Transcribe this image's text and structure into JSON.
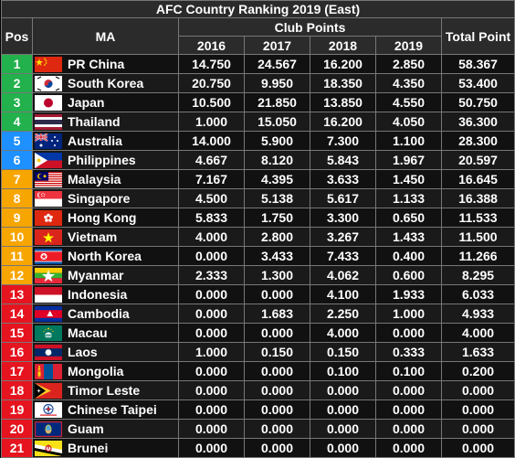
{
  "title": "AFC Country Ranking 2019 (East)",
  "headers": {
    "pos": "Pos",
    "ma": "MA",
    "club_points": "Club Points",
    "years": [
      "2016",
      "2017",
      "2018",
      "2019"
    ],
    "total": "Total Point"
  },
  "colors": {
    "green": "#22b14c",
    "blue": "#1e90ff",
    "amber": "#f7a500",
    "red": "#e5141f"
  },
  "rows": [
    {
      "pos": "1",
      "ma": "PR China",
      "flag": "china-flag-icon",
      "y2016": "14.750",
      "y2017": "24.567",
      "y2018": "16.200",
      "y2019": "2.850",
      "total": "58.367"
    },
    {
      "pos": "2",
      "ma": "South Korea",
      "flag": "south-korea-flag-icon",
      "y2016": "20.750",
      "y2017": "9.950",
      "y2018": "18.350",
      "y2019": "4.350",
      "total": "53.400"
    },
    {
      "pos": "3",
      "ma": "Japan",
      "flag": "japan-flag-icon",
      "y2016": "10.500",
      "y2017": "21.850",
      "y2018": "13.850",
      "y2019": "4.550",
      "total": "50.750"
    },
    {
      "pos": "4",
      "ma": "Thailand",
      "flag": "thailand-flag-icon",
      "y2016": "1.000",
      "y2017": "15.050",
      "y2018": "16.200",
      "y2019": "4.050",
      "total": "36.300"
    },
    {
      "pos": "5",
      "ma": "Australia",
      "flag": "australia-flag-icon",
      "y2016": "14.000",
      "y2017": "5.900",
      "y2018": "7.300",
      "y2019": "1.100",
      "total": "28.300"
    },
    {
      "pos": "6",
      "ma": "Philippines",
      "flag": "philippines-flag-icon",
      "y2016": "4.667",
      "y2017": "8.120",
      "y2018": "5.843",
      "y2019": "1.967",
      "total": "20.597"
    },
    {
      "pos": "7",
      "ma": "Malaysia",
      "flag": "malaysia-flag-icon",
      "y2016": "7.167",
      "y2017": "4.395",
      "y2018": "3.633",
      "y2019": "1.450",
      "total": "16.645"
    },
    {
      "pos": "8",
      "ma": "Singapore",
      "flag": "singapore-flag-icon",
      "y2016": "4.500",
      "y2017": "5.138",
      "y2018": "5.617",
      "y2019": "1.133",
      "total": "16.388"
    },
    {
      "pos": "9",
      "ma": "Hong Kong",
      "flag": "hong-kong-flag-icon",
      "y2016": "5.833",
      "y2017": "1.750",
      "y2018": "3.300",
      "y2019": "0.650",
      "total": "11.533"
    },
    {
      "pos": "10",
      "ma": "Vietnam",
      "flag": "vietnam-flag-icon",
      "y2016": "4.000",
      "y2017": "2.800",
      "y2018": "3.267",
      "y2019": "1.433",
      "total": "11.500"
    },
    {
      "pos": "11",
      "ma": "North Korea",
      "flag": "north-korea-flag-icon",
      "y2016": "0.000",
      "y2017": "3.433",
      "y2018": "7.433",
      "y2019": "0.400",
      "total": "11.266"
    },
    {
      "pos": "12",
      "ma": "Myanmar",
      "flag": "myanmar-flag-icon",
      "y2016": "2.333",
      "y2017": "1.300",
      "y2018": "4.062",
      "y2019": "0.600",
      "total": "8.295"
    },
    {
      "pos": "13",
      "ma": "Indonesia",
      "flag": "indonesia-flag-icon",
      "y2016": "0.000",
      "y2017": "0.000",
      "y2018": "4.100",
      "y2019": "1.933",
      "total": "6.033"
    },
    {
      "pos": "14",
      "ma": "Cambodia",
      "flag": "cambodia-flag-icon",
      "y2016": "0.000",
      "y2017": "1.683",
      "y2018": "2.250",
      "y2019": "1.000",
      "total": "4.933"
    },
    {
      "pos": "15",
      "ma": "Macau",
      "flag": "macau-flag-icon",
      "y2016": "0.000",
      "y2017": "0.000",
      "y2018": "4.000",
      "y2019": "0.000",
      "total": "4.000"
    },
    {
      "pos": "16",
      "ma": "Laos",
      "flag": "laos-flag-icon",
      "y2016": "1.000",
      "y2017": "0.150",
      "y2018": "0.150",
      "y2019": "0.333",
      "total": "1.633"
    },
    {
      "pos": "17",
      "ma": "Mongolia",
      "flag": "mongolia-flag-icon",
      "y2016": "0.000",
      "y2017": "0.000",
      "y2018": "0.100",
      "y2019": "0.100",
      "total": "0.200"
    },
    {
      "pos": "18",
      "ma": "Timor Leste",
      "flag": "timor-leste-flag-icon",
      "y2016": "0.000",
      "y2017": "0.000",
      "y2018": "0.000",
      "y2019": "0.000",
      "total": "0.000"
    },
    {
      "pos": "19",
      "ma": "Chinese Taipei",
      "flag": "chinese-taipei-flag-icon",
      "y2016": "0.000",
      "y2017": "0.000",
      "y2018": "0.000",
      "y2019": "0.000",
      "total": "0.000"
    },
    {
      "pos": "20",
      "ma": "Guam",
      "flag": "guam-flag-icon",
      "y2016": "0.000",
      "y2017": "0.000",
      "y2018": "0.000",
      "y2019": "0.000",
      "total": "0.000"
    },
    {
      "pos": "21",
      "ma": "Brunei",
      "flag": "brunei-flag-icon",
      "y2016": "0.000",
      "y2017": "0.000",
      "y2018": "0.000",
      "y2019": "0.000",
      "total": "0.000"
    }
  ]
}
